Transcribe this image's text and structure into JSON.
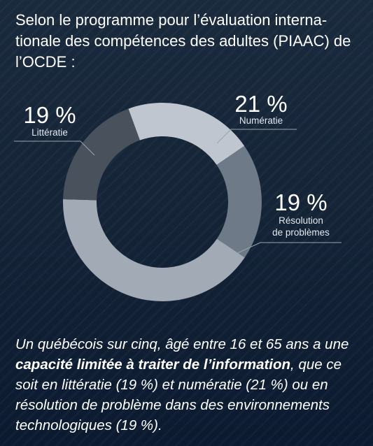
{
  "intro": "Selon le programme pour l’évaluation interna­tionale des compétences des adultes (PIAAC) de l’OCDE :",
  "chart_data": {
    "type": "pie",
    "donut": true,
    "unit": "%",
    "title": "",
    "slices": [
      {
        "name": "Numératie",
        "value": 21,
        "display": "21 %",
        "color": "#bfc6cf"
      },
      {
        "name": "Résolution de problèmes",
        "value": 19,
        "display": "19 %",
        "color": "#6e7a87"
      },
      {
        "name": "",
        "value": 41,
        "display": "",
        "color": "#a2abb5"
      },
      {
        "name": "Littératie",
        "value": 19,
        "display": "19 %",
        "color": "#49525c"
      }
    ]
  },
  "labels": {
    "litteratie": {
      "pct": "19 %",
      "name": "Littératie"
    },
    "numeratie": {
      "pct": "21 %",
      "name": "Numératie"
    },
    "resolution": {
      "pct": "19 %",
      "line1": "Résolution",
      "line2": "de problèmes"
    }
  },
  "summary": {
    "part1": "Un québécois sur cinq, âgé entre 16 et 65 ans a une ",
    "bold": "capacité limitée à traiter de l’informa­tion",
    "part2": ", que ce soit en littératie (19 %) et numéra­tie (21 %) ou en résolution de problème dans des environnements technologiques (19 %)."
  }
}
